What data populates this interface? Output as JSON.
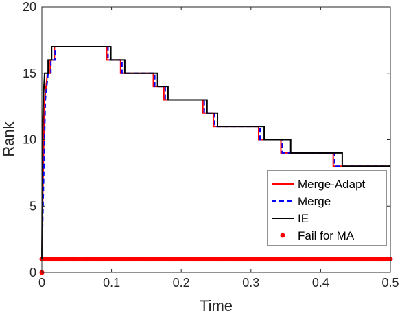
{
  "chart_data": {
    "type": "line",
    "xlabel": "Time",
    "ylabel": "Rank",
    "xlim": [
      0,
      0.5
    ],
    "ylim": [
      0,
      20
    ],
    "xticks": [
      0,
      0.1,
      0.2,
      0.3,
      0.4,
      0.5
    ],
    "xtick_labels": [
      "0",
      "0.1",
      "0.2",
      "0.3",
      "0.4",
      "0.5"
    ],
    "yticks": [
      0,
      5,
      10,
      15,
      20
    ],
    "ytick_labels": [
      "0",
      "5",
      "10",
      "15",
      "20"
    ],
    "grid": false,
    "legend_position": "bottom-right",
    "series": [
      {
        "name": "Merge-Adapt",
        "style": "solid",
        "color": "#ff0000",
        "points": [
          [
            0,
            1
          ],
          [
            0.002,
            8
          ],
          [
            0.004,
            13
          ],
          [
            0.006,
            14
          ],
          [
            0.008,
            15
          ],
          [
            0.012,
            15
          ],
          [
            0.012,
            16
          ],
          [
            0.018,
            16
          ],
          [
            0.018,
            17
          ],
          [
            0.093,
            17
          ],
          [
            0.093,
            16
          ],
          [
            0.113,
            16
          ],
          [
            0.113,
            15
          ],
          [
            0.16,
            15
          ],
          [
            0.16,
            14
          ],
          [
            0.175,
            14
          ],
          [
            0.175,
            13
          ],
          [
            0.231,
            13
          ],
          [
            0.231,
            12
          ],
          [
            0.246,
            12
          ],
          [
            0.246,
            11
          ],
          [
            0.311,
            11
          ],
          [
            0.311,
            10
          ],
          [
            0.343,
            10
          ],
          [
            0.343,
            9
          ],
          [
            0.418,
            9
          ],
          [
            0.418,
            8
          ],
          [
            0.5,
            8
          ]
        ]
      },
      {
        "name": "Merge",
        "style": "dashed",
        "color": "#0000ff",
        "points": [
          [
            0,
            1
          ],
          [
            0.003,
            8
          ],
          [
            0.005,
            13
          ],
          [
            0.007,
            14
          ],
          [
            0.009,
            15
          ],
          [
            0.013,
            15
          ],
          [
            0.013,
            16
          ],
          [
            0.019,
            16
          ],
          [
            0.019,
            17
          ],
          [
            0.095,
            17
          ],
          [
            0.095,
            16
          ],
          [
            0.115,
            16
          ],
          [
            0.115,
            15
          ],
          [
            0.162,
            15
          ],
          [
            0.162,
            14
          ],
          [
            0.177,
            14
          ],
          [
            0.177,
            13
          ],
          [
            0.233,
            13
          ],
          [
            0.233,
            12
          ],
          [
            0.248,
            12
          ],
          [
            0.248,
            11
          ],
          [
            0.313,
            11
          ],
          [
            0.313,
            10
          ],
          [
            0.345,
            10
          ],
          [
            0.345,
            9
          ],
          [
            0.42,
            9
          ],
          [
            0.42,
            8
          ],
          [
            0.5,
            8
          ]
        ]
      },
      {
        "name": "IE",
        "style": "solid",
        "color": "#000000",
        "points": [
          [
            0,
            1
          ],
          [
            0.001,
            10
          ],
          [
            0.002,
            13
          ],
          [
            0.004,
            15
          ],
          [
            0.009,
            15
          ],
          [
            0.009,
            16
          ],
          [
            0.014,
            16
          ],
          [
            0.014,
            17
          ],
          [
            0.099,
            17
          ],
          [
            0.099,
            16
          ],
          [
            0.119,
            16
          ],
          [
            0.119,
            15
          ],
          [
            0.166,
            15
          ],
          [
            0.166,
            14
          ],
          [
            0.181,
            14
          ],
          [
            0.181,
            13
          ],
          [
            0.237,
            13
          ],
          [
            0.237,
            12
          ],
          [
            0.252,
            12
          ],
          [
            0.252,
            11
          ],
          [
            0.319,
            11
          ],
          [
            0.319,
            10
          ],
          [
            0.357,
            10
          ],
          [
            0.357,
            9
          ],
          [
            0.431,
            9
          ],
          [
            0.431,
            8
          ],
          [
            0.5,
            8
          ]
        ]
      },
      {
        "name": "Fail for MA",
        "style": "markers",
        "color": "#ff0000",
        "x_range": [
          0,
          0.5
        ],
        "y": 1,
        "extra_points": [
          [
            0,
            0
          ]
        ]
      }
    ]
  }
}
